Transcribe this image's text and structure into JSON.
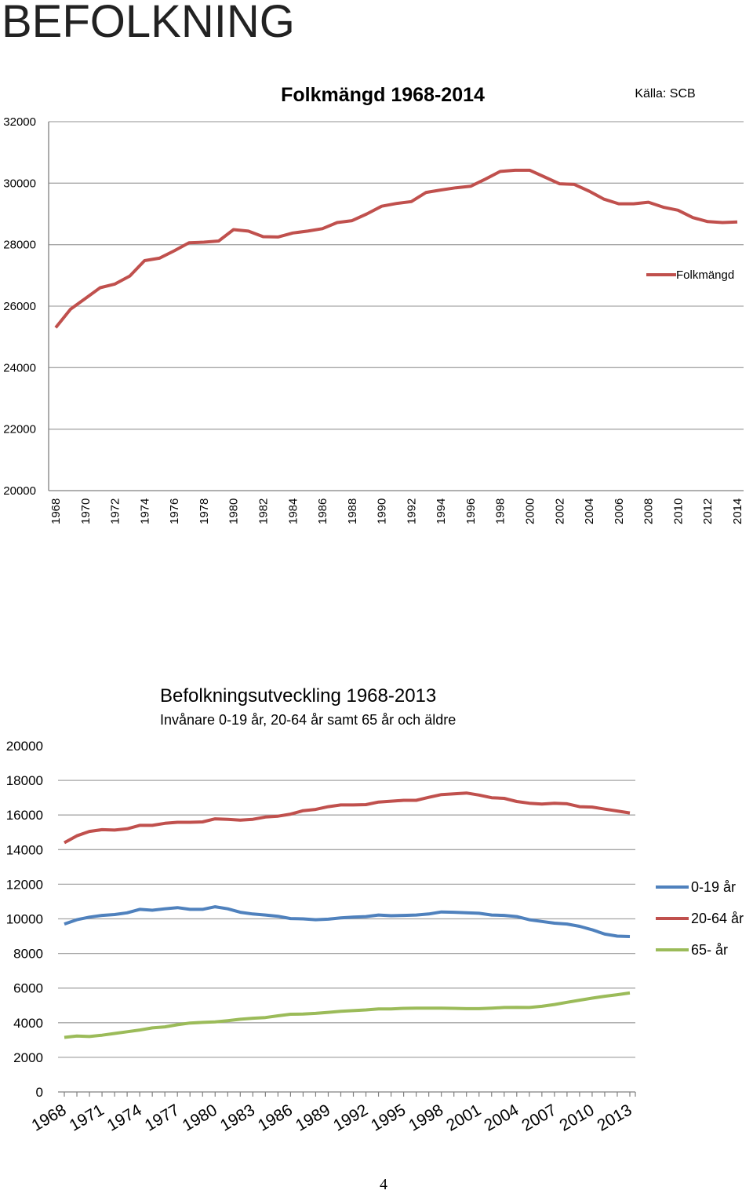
{
  "page": {
    "title": "BEFOLKNING",
    "page_number": "4"
  },
  "colors": {
    "folkmangd": "#c0504d",
    "age_0_19": "#4f81bd",
    "age_20_64": "#c0504d",
    "age_65": "#9bbb59",
    "grid": "#a6a6a6",
    "axis": "#808080"
  },
  "chart_data": [
    {
      "type": "line",
      "title": "Folkmängd 1968-2014",
      "source": "Källa: SCB",
      "xlabel": "",
      "ylabel": "",
      "ylim": [
        20000,
        32000
      ],
      "yticks": [
        20000,
        22000,
        24000,
        26000,
        28000,
        30000,
        32000
      ],
      "xtick_labels": [
        "1968",
        "1970",
        "1972",
        "1974",
        "1976",
        "1978",
        "1980",
        "1982",
        "1984",
        "1986",
        "1988",
        "1990",
        "1992",
        "1994",
        "1996",
        "1998",
        "2000",
        "2002",
        "2004",
        "2006",
        "2008",
        "2010",
        "2012",
        "2014"
      ],
      "grid": true,
      "legend_position": "right",
      "x": [
        1968,
        1969,
        1970,
        1971,
        1972,
        1973,
        1974,
        1975,
        1976,
        1977,
        1978,
        1979,
        1980,
        1981,
        1982,
        1983,
        1984,
        1985,
        1986,
        1987,
        1988,
        1989,
        1990,
        1991,
        1992,
        1993,
        1994,
        1995,
        1996,
        1997,
        1998,
        1999,
        2000,
        2001,
        2002,
        2003,
        2004,
        2005,
        2006,
        2007,
        2008,
        2009,
        2010,
        2011,
        2012,
        2013,
        2014
      ],
      "series": [
        {
          "name": "Folkmängd",
          "values": [
            25300,
            25900,
            26250,
            26600,
            26720,
            26980,
            27480,
            27560,
            27800,
            28060,
            28080,
            28120,
            28490,
            28440,
            28260,
            28250,
            28380,
            28440,
            28520,
            28720,
            28780,
            29000,
            29250,
            29340,
            29400,
            29700,
            29780,
            29850,
            29900,
            30130,
            30380,
            30420,
            30420,
            30200,
            29980,
            29960,
            29740,
            29480,
            29330,
            29330,
            29380,
            29220,
            29120,
            28880,
            28750,
            28720,
            28740
          ]
        }
      ]
    },
    {
      "type": "line",
      "title": "Befolkningsutveckling 1968-2013",
      "subtitle": "Invånare 0-19 år, 20-64 år samt 65 år och äldre",
      "xlabel": "",
      "ylabel": "",
      "ylim": [
        0,
        20000
      ],
      "yticks": [
        0,
        2000,
        4000,
        6000,
        8000,
        10000,
        12000,
        14000,
        16000,
        18000,
        20000
      ],
      "xtick_labels": [
        "1968",
        "1971",
        "1974",
        "1977",
        "1980",
        "1983",
        "1986",
        "1989",
        "1992",
        "1995",
        "1998",
        "2001",
        "2004",
        "2007",
        "2010",
        "2013"
      ],
      "grid": true,
      "legend_position": "right",
      "x": [
        1968,
        1969,
        1970,
        1971,
        1972,
        1973,
        1974,
        1975,
        1976,
        1977,
        1978,
        1979,
        1980,
        1981,
        1982,
        1983,
        1984,
        1985,
        1986,
        1987,
        1988,
        1989,
        1990,
        1991,
        1992,
        1993,
        1994,
        1995,
        1996,
        1997,
        1998,
        1999,
        2000,
        2001,
        2002,
        2003,
        2004,
        2005,
        2006,
        2007,
        2008,
        2009,
        2010,
        2011,
        2012,
        2013
      ],
      "series": [
        {
          "name": "0-19 år",
          "values": [
            9700,
            9950,
            10100,
            10200,
            10250,
            10350,
            10550,
            10500,
            10580,
            10650,
            10550,
            10550,
            10700,
            10580,
            10380,
            10280,
            10220,
            10150,
            10020,
            10000,
            9950,
            9980,
            10060,
            10100,
            10130,
            10220,
            10180,
            10200,
            10220,
            10280,
            10400,
            10380,
            10350,
            10320,
            10220,
            10200,
            10130,
            9950,
            9850,
            9750,
            9700,
            9570,
            9370,
            9120,
            9000,
            8980
          ]
        },
        {
          "name": "20-64 år",
          "values": [
            14400,
            14800,
            15050,
            15150,
            15130,
            15200,
            15400,
            15400,
            15520,
            15580,
            15580,
            15600,
            15780,
            15750,
            15700,
            15750,
            15880,
            15930,
            16050,
            16250,
            16320,
            16480,
            16580,
            16580,
            16600,
            16750,
            16800,
            16850,
            16850,
            17020,
            17180,
            17220,
            17270,
            17150,
            17000,
            16960,
            16780,
            16680,
            16630,
            16680,
            16650,
            16480,
            16460,
            16340,
            16230,
            16120
          ]
        },
        {
          "name": "65- år",
          "values": [
            3150,
            3230,
            3200,
            3280,
            3380,
            3480,
            3580,
            3700,
            3760,
            3880,
            3980,
            4020,
            4050,
            4120,
            4200,
            4260,
            4300,
            4400,
            4490,
            4500,
            4540,
            4600,
            4660,
            4700,
            4740,
            4800,
            4800,
            4830,
            4840,
            4840,
            4840,
            4830,
            4810,
            4810,
            4840,
            4880,
            4890,
            4880,
            4950,
            5050,
            5180,
            5300,
            5420,
            5530,
            5620,
            5720
          ]
        }
      ]
    }
  ]
}
